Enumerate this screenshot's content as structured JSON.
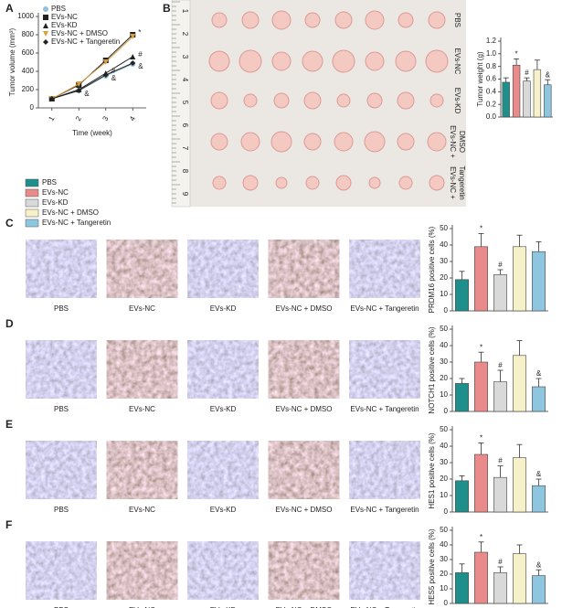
{
  "chart_data": [
    {
      "type": "line",
      "panel": "A",
      "x_label": "Time (week)",
      "y_label": "Tumor volume (mm³)",
      "categories": [
        "1",
        "2",
        "3",
        "4"
      ],
      "ylim": [
        0,
        1000
      ],
      "yticks": [
        0,
        200,
        400,
        600,
        800,
        1000
      ],
      "series": [
        {
          "name": "PBS",
          "color": "#8fc3dc",
          "marker": "circle",
          "values": [
            100,
            190,
            350,
            480
          ],
          "annotations": [
            null,
            null,
            null,
            null
          ]
        },
        {
          "name": "EVs-NC",
          "color": "#222222",
          "marker": "square",
          "values": [
            100,
            250,
            520,
            800
          ],
          "annotations": [
            null,
            null,
            null,
            "*"
          ]
        },
        {
          "name": "EVs-KD",
          "color": "#222222",
          "marker": "triangle",
          "values": [
            100,
            200,
            380,
            560
          ],
          "annotations": [
            null,
            null,
            "#",
            "#"
          ]
        },
        {
          "name": "EVs-NC + DMSO",
          "color": "#d9a040",
          "marker": "down-triangle",
          "values": [
            100,
            260,
            500,
            780
          ],
          "annotations": [
            null,
            null,
            null,
            null
          ]
        },
        {
          "name": "EVs-NC + Tangeretin",
          "color": "#222222",
          "marker": "diamond",
          "values": [
            100,
            190,
            360,
            490
          ],
          "annotations": [
            null,
            "&",
            "&",
            "&"
          ]
        }
      ]
    },
    {
      "type": "bar",
      "panel": "B",
      "y_label": "Tumor weight (g)",
      "ylim": [
        0,
        1.2
      ],
      "yticks": [
        {
          "value": 0,
          "label": "0.0"
        },
        {
          "value": 0.2,
          "label": "0.2"
        },
        {
          "value": 0.4,
          "label": "0.4"
        },
        {
          "value": 0.6,
          "label": "0.6"
        },
        {
          "value": 0.8,
          "label": "0.8"
        },
        {
          "value": 1,
          "label": "1.0"
        },
        {
          "value": 1.2,
          "label": "1.2"
        }
      ],
      "values": [
        0.55,
        0.82,
        0.57,
        0.75,
        0.51
      ],
      "errors": [
        0.07,
        0.1,
        0.05,
        0.15,
        0.08
      ],
      "annotations": [
        null,
        "*",
        "#",
        null,
        "&"
      ]
    },
    {
      "type": "bar",
      "panel": "C",
      "y_label": "PRDM16 positive cells (%)",
      "ylim": [
        0,
        50
      ],
      "yticks": [
        0,
        10,
        20,
        30,
        40,
        50
      ],
      "values": [
        19,
        39,
        22,
        39,
        36
      ],
      "errors": [
        5,
        8,
        3,
        7,
        6
      ],
      "annotations": [
        null,
        "*",
        "#",
        null,
        null
      ],
      "image_labels": [
        "PBS",
        "EVs-NC",
        "EVs-KD",
        "EVs-NC + DMSO",
        "EVs-NC + Tangeretin"
      ]
    },
    {
      "type": "bar",
      "panel": "D",
      "y_label": "NOTCH1 positive cells (%)",
      "ylim": [
        0,
        50
      ],
      "yticks": [
        0,
        10,
        20,
        30,
        40,
        50
      ],
      "values": [
        17,
        30,
        18,
        34,
        15
      ],
      "errors": [
        3,
        6,
        7,
        9,
        5
      ],
      "annotations": [
        null,
        "*",
        "#",
        null,
        "&"
      ],
      "image_labels": [
        "PBS",
        "EVs-NC",
        "EVs-KD",
        "EVs-NC + DMSO",
        "EVs-NC + Tangeretin"
      ]
    },
    {
      "type": "bar",
      "panel": "E",
      "y_label": "HES1 positive cells (%)",
      "ylim": [
        0,
        50
      ],
      "yticks": [
        0,
        10,
        20,
        30,
        40,
        50
      ],
      "values": [
        19,
        35,
        21,
        33,
        16
      ],
      "errors": [
        3,
        7,
        7,
        8,
        4
      ],
      "annotations": [
        null,
        "*",
        "#",
        null,
        "&"
      ],
      "image_labels": [
        "PBS",
        "EVs-NC",
        "EVs-KD",
        "EVs-NC + DMSO",
        "EVs-NC + Tangeretin"
      ]
    },
    {
      "type": "bar",
      "panel": "F",
      "y_label": "HES5 positive cells (%)",
      "ylim": [
        0,
        50
      ],
      "yticks": [
        0,
        10,
        20,
        30,
        40,
        50
      ],
      "values": [
        21,
        35,
        21,
        34,
        19
      ],
      "errors": [
        6,
        7,
        4,
        6,
        4
      ],
      "annotations": [
        null,
        "*",
        "#",
        null,
        "&"
      ],
      "image_labels": [
        "PBS",
        "EVs-NC",
        "EVs-KD",
        "EVs-NC + DMSO",
        "EVs-NC + Tangeretin"
      ]
    }
  ],
  "legend": [
    {
      "name": "PBS",
      "color": "#1f8f8c"
    },
    {
      "name": "EVs-NC",
      "color": "#e98b8b"
    },
    {
      "name": "EVs-KD",
      "color": "#d9d9d9"
    },
    {
      "name": "EVs-NC + DMSO",
      "color": "#f6f1c9"
    },
    {
      "name": "EVs-NC + Tangeretin",
      "color": "#8ec6e0"
    }
  ],
  "photo": {
    "ruler_labels": [
      "1",
      "2",
      "3",
      "4",
      "5",
      "6",
      "7",
      "8",
      "9"
    ],
    "row_labels": [
      [
        "PBS"
      ],
      [
        "EVs-NC"
      ],
      [
        "EVs-KD"
      ],
      [
        "EVs-NC +",
        "DMSO"
      ],
      [
        "EVs-NC +",
        "Tangeretin"
      ]
    ]
  }
}
